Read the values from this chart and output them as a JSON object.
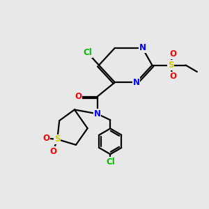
{
  "bg_color": "#e8e8e8",
  "bond_color": "#000000",
  "bond_width": 1.6,
  "atom_colors": {
    "C": "#000000",
    "N": "#0000ff",
    "O": "#ff0000",
    "S": "#cccc00",
    "Cl": "#00bb00"
  },
  "font_size": 8.5,
  "figsize": [
    3.0,
    3.0
  ],
  "dpi": 100
}
